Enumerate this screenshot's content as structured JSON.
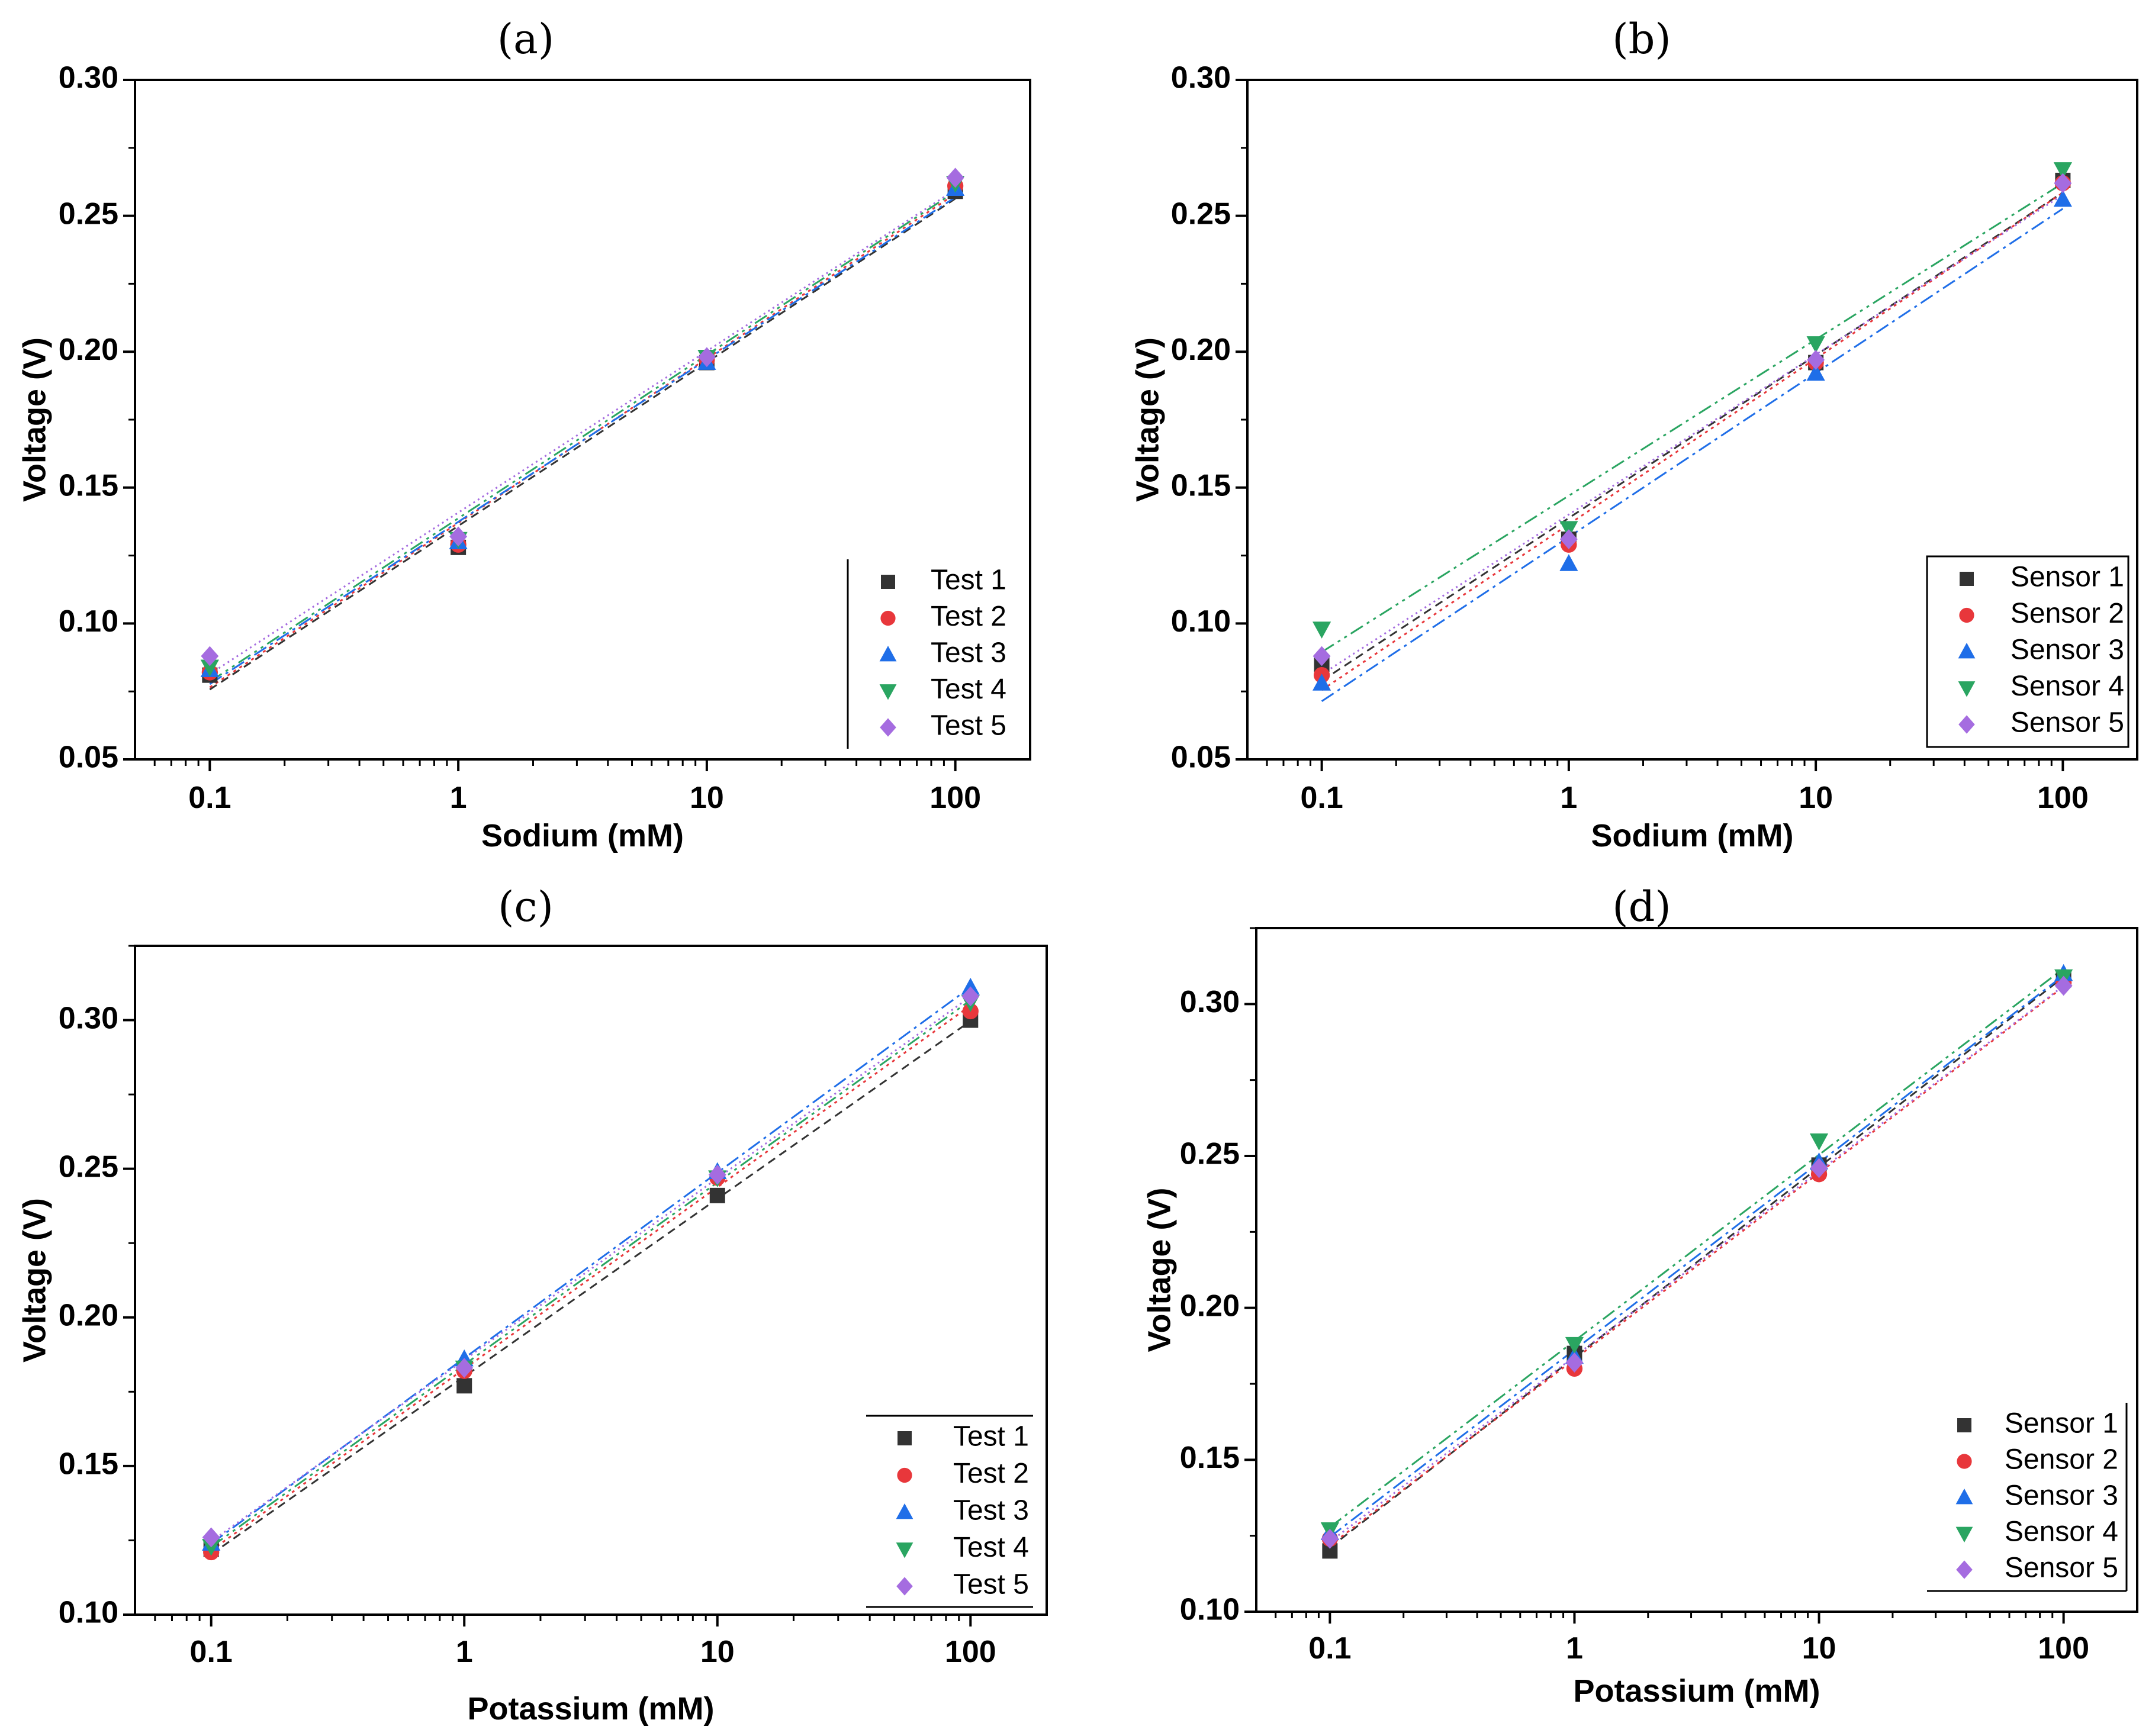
{
  "chart_data": [
    {
      "type": "scatter",
      "panel_label": "(a)",
      "xscale": "log",
      "x": [
        0.1,
        1,
        10,
        100
      ],
      "x_tick_labels": [
        "0.1",
        "1",
        "10",
        "100"
      ],
      "xlabel": "Sodium (mM)",
      "ylabel": "Voltage (V)",
      "xlim": [
        0.05,
        200
      ],
      "ylim": [
        0.05,
        0.3
      ],
      "yticks": [
        0.05,
        0.1,
        0.15,
        0.2,
        0.25,
        0.3
      ],
      "y_tick_labels": [
        "0.05",
        "0.10",
        "0.15",
        "0.20",
        "0.25",
        "0.30"
      ],
      "legend_position": "bottom-right",
      "series": [
        {
          "name": "Test 1",
          "marker": "square",
          "color": "#333333",
          "values": [
            0.081,
            0.128,
            0.196,
            0.259
          ]
        },
        {
          "name": "Test 2",
          "marker": "circle",
          "color": "#e8373b",
          "values": [
            0.082,
            0.129,
            0.197,
            0.261
          ]
        },
        {
          "name": "Test 3",
          "marker": "triangle-up",
          "color": "#1f6ee8",
          "values": [
            0.083,
            0.13,
            0.196,
            0.26
          ]
        },
        {
          "name": "Test 4",
          "marker": "triangle-down",
          "color": "#2aa561",
          "values": [
            0.084,
            0.131,
            0.198,
            0.262
          ]
        },
        {
          "name": "Test 5",
          "marker": "diamond",
          "color": "#a56ce0",
          "values": [
            0.088,
            0.132,
            0.198,
            0.264
          ]
        }
      ]
    },
    {
      "type": "scatter",
      "panel_label": "(b)",
      "xscale": "log",
      "x": [
        0.1,
        1,
        10,
        100
      ],
      "x_tick_labels": [
        "0.1",
        "1",
        "10",
        "100"
      ],
      "xlabel": "Sodium (mM)",
      "ylabel": "Voltage (V)",
      "xlim": [
        0.05,
        200
      ],
      "ylim": [
        0.05,
        0.3
      ],
      "yticks": [
        0.05,
        0.1,
        0.15,
        0.2,
        0.25,
        0.3
      ],
      "y_tick_labels": [
        "0.05",
        "0.10",
        "0.15",
        "0.20",
        "0.25",
        "0.30"
      ],
      "legend_position": "bottom-right",
      "series": [
        {
          "name": "Sensor 1",
          "marker": "square",
          "color": "#333333",
          "values": [
            0.085,
            0.131,
            0.196,
            0.263
          ]
        },
        {
          "name": "Sensor 2",
          "marker": "circle",
          "color": "#e8373b",
          "values": [
            0.081,
            0.129,
            0.196,
            0.262
          ]
        },
        {
          "name": "Sensor 3",
          "marker": "triangle-up",
          "color": "#1f6ee8",
          "values": [
            0.078,
            0.122,
            0.192,
            0.256
          ]
        },
        {
          "name": "Sensor 4",
          "marker": "triangle-down",
          "color": "#2aa561",
          "values": [
            0.098,
            0.135,
            0.203,
            0.267
          ]
        },
        {
          "name": "Sensor 5",
          "marker": "diamond",
          "color": "#a56ce0",
          "values": [
            0.088,
            0.131,
            0.197,
            0.262
          ]
        }
      ]
    },
    {
      "type": "scatter",
      "panel_label": "(c)",
      "xscale": "log",
      "x": [
        0.1,
        1,
        10,
        100
      ],
      "x_tick_labels": [
        "0.1",
        "1",
        "10",
        "100"
      ],
      "xlabel": "Potassium (mM)",
      "ylabel": "Voltage (V)",
      "xlim": [
        0.05,
        200
      ],
      "ylim": [
        0.1,
        0.325
      ],
      "yticks": [
        0.1,
        0.15,
        0.2,
        0.25,
        0.3
      ],
      "y_tick_labels": [
        "0.10",
        "0.15",
        "0.20",
        "0.25",
        "0.30"
      ],
      "legend_position": "bottom-right",
      "series": [
        {
          "name": "Test 1",
          "marker": "square",
          "color": "#333333",
          "values": [
            0.122,
            0.177,
            0.241,
            0.3
          ]
        },
        {
          "name": "Test 2",
          "marker": "circle",
          "color": "#e8373b",
          "values": [
            0.121,
            0.182,
            0.247,
            0.303
          ]
        },
        {
          "name": "Test 3",
          "marker": "triangle-up",
          "color": "#1f6ee8",
          "values": [
            0.124,
            0.186,
            0.249,
            0.311
          ]
        },
        {
          "name": "Test 4",
          "marker": "triangle-down",
          "color": "#2aa561",
          "values": [
            0.123,
            0.183,
            0.247,
            0.306
          ]
        },
        {
          "name": "Test 5",
          "marker": "diamond",
          "color": "#a56ce0",
          "values": [
            0.126,
            0.183,
            0.248,
            0.308
          ]
        }
      ]
    },
    {
      "type": "scatter",
      "panel_label": "(d)",
      "xscale": "log",
      "x": [
        0.1,
        1,
        10,
        100
      ],
      "x_tick_labels": [
        "0.1",
        "1",
        "10",
        "100"
      ],
      "xlabel": "Potassium (mM)",
      "ylabel": "Voltage (V)",
      "xlim": [
        0.05,
        200
      ],
      "ylim": [
        0.1,
        0.325
      ],
      "yticks": [
        0.1,
        0.15,
        0.2,
        0.25,
        0.3
      ],
      "y_tick_labels": [
        "0.10",
        "0.15",
        "0.20",
        "0.25",
        "0.30"
      ],
      "legend_position": "bottom-right",
      "series": [
        {
          "name": "Sensor 1",
          "marker": "square",
          "color": "#333333",
          "values": [
            0.12,
            0.185,
            0.247,
            0.308
          ]
        },
        {
          "name": "Sensor 2",
          "marker": "circle",
          "color": "#e8373b",
          "values": [
            0.124,
            0.18,
            0.244,
            0.307
          ]
        },
        {
          "name": "Sensor 3",
          "marker": "triangle-up",
          "color": "#1f6ee8",
          "values": [
            0.126,
            0.184,
            0.248,
            0.31
          ]
        },
        {
          "name": "Sensor 4",
          "marker": "triangle-down",
          "color": "#2aa561",
          "values": [
            0.127,
            0.188,
            0.255,
            0.309
          ]
        },
        {
          "name": "Sensor 5",
          "marker": "diamond",
          "color": "#a56ce0",
          "values": [
            0.124,
            0.182,
            0.246,
            0.306
          ]
        }
      ]
    }
  ]
}
